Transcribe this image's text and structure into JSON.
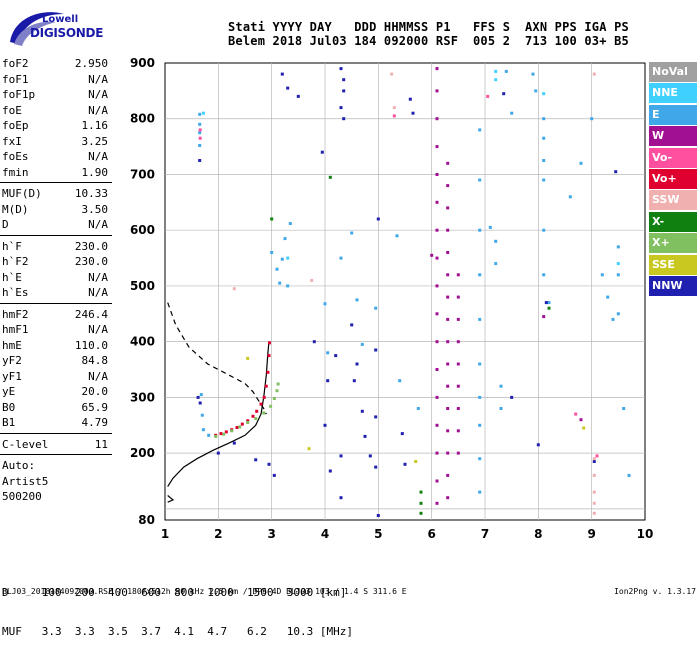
{
  "logo": {
    "line1": "Lowell",
    "line2": "DIGISONDE"
  },
  "header": {
    "labels": "Stati YYYY DAY   DDD HHMMSS P1   FFS S  AXN PPS IGA PS",
    "values": "Belem 2018 Jul03 184 092000 RSF  005 2  713 100 03+ B5"
  },
  "params": [
    {
      "label": "foF2",
      "value": "2.950"
    },
    {
      "label": "foF1",
      "value": "N/A"
    },
    {
      "label": "foF1p",
      "value": "N/A"
    },
    {
      "label": "foE",
      "value": "N/A"
    },
    {
      "label": "foEp",
      "value": "1.16"
    },
    {
      "label": "fxI",
      "value": "3.25"
    },
    {
      "label": "foEs",
      "value": "N/A"
    },
    {
      "label": "fmin",
      "value": "1.90"
    },
    {
      "label": "---"
    },
    {
      "label": "MUF(D)",
      "value": "10.33"
    },
    {
      "label": "M(D)",
      "value": "3.50"
    },
    {
      "label": "D",
      "value": "N/A"
    },
    {
      "label": "---"
    },
    {
      "label": "h`F",
      "value": "230.0"
    },
    {
      "label": "h`F2",
      "value": "230.0"
    },
    {
      "label": "h`E",
      "value": "N/A"
    },
    {
      "label": "h`Es",
      "value": "N/A"
    },
    {
      "label": "---"
    },
    {
      "label": "hmF2",
      "value": "246.4"
    },
    {
      "label": "hmF1",
      "value": "N/A"
    },
    {
      "label": "hmE",
      "value": "110.0"
    },
    {
      "label": "yF2",
      "value": "84.8"
    },
    {
      "label": "yF1",
      "value": "N/A"
    },
    {
      "label": "yE",
      "value": "20.0"
    },
    {
      "label": "B0",
      "value": "65.9"
    },
    {
      "label": "B1",
      "value": "4.79"
    },
    {
      "label": "---"
    },
    {
      "label": "C-level",
      "value": "11"
    },
    {
      "label": "---"
    },
    {
      "text": "Auto:"
    },
    {
      "text": "Artist5"
    },
    {
      "text": "500200"
    }
  ],
  "legend": [
    {
      "label": "NoVal",
      "color": "#a0a0a0"
    },
    {
      "label": "NNE",
      "color": "#40d0ff"
    },
    {
      "label": "E",
      "color": "#40a8e8"
    },
    {
      "label": "W",
      "color": "#a01090"
    },
    {
      "label": "Vo-",
      "color": "#ff50a0"
    },
    {
      "label": "Vo+",
      "color": "#e00030"
    },
    {
      "label": "SSW",
      "color": "#f0b0b0"
    },
    {
      "label": "X-",
      "color": "#108010"
    },
    {
      "label": "X+",
      "color": "#80c060"
    },
    {
      "label": "SSE",
      "color": "#c8c820"
    },
    {
      "label": "NNW",
      "color": "#2020b0"
    }
  ],
  "dtable": {
    "row1": "D     100  200  400  600  800  1000  1500  3000 [km]",
    "row2": "MUF   3.3  3.3  3.5  3.7  4.1  4.7   6.2   10.3 [MHz]"
  },
  "footer": {
    "text": "BLJ03_2018184092000.RSF / 180fx512h 50 kHz 2.5 km / DPS-4D BLJ03 103 / 1.4 S 311.6 E",
    "version": "Ion2Png v. 1.3.17"
  },
  "chart_data": {
    "type": "scatter",
    "title": "",
    "xlabel": "",
    "ylabel": "",
    "xlim": [
      1,
      10
    ],
    "ylim": [
      80,
      900
    ],
    "x_ticks": [
      1,
      2,
      3,
      4,
      5,
      6,
      7,
      8,
      9,
      10
    ],
    "y_ticks": [
      80,
      100,
      200,
      300,
      400,
      500,
      600,
      700,
      800,
      900
    ],
    "y_tick_labels": [
      "80",
      "",
      "200",
      "300",
      "400",
      "500",
      "600",
      "700",
      "800",
      "900"
    ],
    "grid": true,
    "legend_position": "right",
    "series": [
      {
        "color": "#e00030",
        "points": [
          [
            1.95,
            232
          ],
          [
            2.05,
            235
          ],
          [
            2.15,
            238
          ],
          [
            2.25,
            242
          ],
          [
            2.35,
            246
          ],
          [
            2.45,
            252
          ],
          [
            2.55,
            258
          ],
          [
            2.65,
            266
          ],
          [
            2.72,
            275
          ],
          [
            2.8,
            288
          ],
          [
            2.86,
            300
          ],
          [
            2.9,
            320
          ],
          [
            2.93,
            345
          ],
          [
            2.95,
            375
          ],
          [
            2.96,
            398
          ]
        ]
      },
      {
        "color": "#80c060",
        "points": [
          [
            1.95,
            230
          ],
          [
            2.1,
            234
          ],
          [
            2.25,
            240
          ],
          [
            2.4,
            247
          ],
          [
            2.55,
            255
          ],
          [
            2.7,
            262
          ],
          [
            2.85,
            272
          ],
          [
            2.98,
            284
          ],
          [
            3.05,
            298
          ],
          [
            3.1,
            312
          ],
          [
            3.12,
            324
          ]
        ]
      },
      {
        "color": "#40a8e8",
        "points": [
          [
            1.65,
            808
          ],
          [
            1.65,
            790
          ],
          [
            1.65,
            775
          ],
          [
            1.65,
            752
          ],
          [
            1.68,
            305
          ],
          [
            1.7,
            268
          ],
          [
            1.72,
            242
          ],
          [
            1.82,
            232
          ],
          [
            3.0,
            560
          ],
          [
            3.1,
            530
          ],
          [
            3.15,
            505
          ],
          [
            3.2,
            548
          ],
          [
            3.25,
            585
          ],
          [
            3.3,
            500
          ],
          [
            3.35,
            612
          ],
          [
            4.0,
            468
          ],
          [
            4.05,
            380
          ],
          [
            4.3,
            550
          ],
          [
            4.5,
            595
          ],
          [
            4.6,
            475
          ],
          [
            4.7,
            395
          ],
          [
            4.95,
            460
          ],
          [
            5.35,
            590
          ],
          [
            5.4,
            330
          ],
          [
            5.75,
            280
          ],
          [
            6.9,
            780
          ],
          [
            6.9,
            690
          ],
          [
            6.9,
            600
          ],
          [
            6.9,
            520
          ],
          [
            6.9,
            440
          ],
          [
            6.9,
            360
          ],
          [
            6.9,
            300
          ],
          [
            6.9,
            250
          ],
          [
            6.9,
            190
          ],
          [
            6.9,
            130
          ],
          [
            7.1,
            605
          ],
          [
            7.2,
            580
          ],
          [
            7.2,
            540
          ],
          [
            7.3,
            320
          ],
          [
            7.3,
            280
          ],
          [
            7.4,
            885
          ],
          [
            7.5,
            810
          ],
          [
            7.9,
            880
          ],
          [
            7.95,
            850
          ],
          [
            8.1,
            800
          ],
          [
            8.1,
            765
          ],
          [
            8.1,
            725
          ],
          [
            8.1,
            690
          ],
          [
            8.1,
            600
          ],
          [
            8.1,
            520
          ],
          [
            8.2,
            470
          ],
          [
            8.6,
            660
          ],
          [
            8.8,
            720
          ],
          [
            9.0,
            800
          ],
          [
            9.2,
            520
          ],
          [
            9.3,
            480
          ],
          [
            9.4,
            440
          ],
          [
            9.5,
            570
          ],
          [
            9.5,
            520
          ],
          [
            9.5,
            450
          ],
          [
            9.6,
            280
          ],
          [
            9.7,
            160
          ]
        ]
      },
      {
        "color": "#40d0ff",
        "points": [
          [
            1.72,
            810
          ],
          [
            3.3,
            550
          ],
          [
            7.2,
            870
          ],
          [
            7.2,
            885
          ],
          [
            8.1,
            845
          ],
          [
            9.5,
            540
          ]
        ]
      },
      {
        "color": "#2020b0",
        "points": [
          [
            1.62,
            300
          ],
          [
            1.65,
            725
          ],
          [
            1.66,
            290
          ],
          [
            2.0,
            200
          ],
          [
            2.3,
            218
          ],
          [
            2.7,
            188
          ],
          [
            2.95,
            180
          ],
          [
            3.05,
            160
          ],
          [
            3.2,
            880
          ],
          [
            3.3,
            855
          ],
          [
            3.5,
            840
          ],
          [
            3.8,
            400
          ],
          [
            3.95,
            740
          ],
          [
            4.0,
            250
          ],
          [
            4.05,
            330
          ],
          [
            4.1,
            168
          ],
          [
            4.2,
            375
          ],
          [
            4.3,
            890
          ],
          [
            4.35,
            870
          ],
          [
            4.35,
            850
          ],
          [
            4.3,
            820
          ],
          [
            4.35,
            800
          ],
          [
            4.3,
            195
          ],
          [
            4.3,
            120
          ],
          [
            4.5,
            430
          ],
          [
            4.55,
            330
          ],
          [
            4.6,
            360
          ],
          [
            4.7,
            275
          ],
          [
            4.75,
            230
          ],
          [
            4.85,
            195
          ],
          [
            4.95,
            385
          ],
          [
            4.95,
            265
          ],
          [
            4.95,
            175
          ],
          [
            5.0,
            620
          ],
          [
            5.0,
            88
          ],
          [
            5.45,
            235
          ],
          [
            5.5,
            180
          ],
          [
            5.6,
            835
          ],
          [
            5.65,
            810
          ],
          [
            7.35,
            845
          ],
          [
            7.5,
            300
          ],
          [
            8.0,
            215
          ],
          [
            8.15,
            470
          ],
          [
            9.05,
            185
          ],
          [
            9.45,
            705
          ]
        ]
      },
      {
        "color": "#a01090",
        "points": [
          [
            6.1,
            890
          ],
          [
            6.1,
            850
          ],
          [
            6.1,
            800
          ],
          [
            6.1,
            750
          ],
          [
            6.1,
            700
          ],
          [
            6.1,
            650
          ],
          [
            6.1,
            600
          ],
          [
            6.1,
            550
          ],
          [
            6.1,
            500
          ],
          [
            6.1,
            450
          ],
          [
            6.1,
            400
          ],
          [
            6.1,
            350
          ],
          [
            6.1,
            300
          ],
          [
            6.1,
            250
          ],
          [
            6.1,
            200
          ],
          [
            6.1,
            150
          ],
          [
            6.1,
            110
          ],
          [
            6.3,
            720
          ],
          [
            6.3,
            680
          ],
          [
            6.3,
            640
          ],
          [
            6.3,
            600
          ],
          [
            6.3,
            560
          ],
          [
            6.3,
            520
          ],
          [
            6.3,
            480
          ],
          [
            6.3,
            440
          ],
          [
            6.3,
            400
          ],
          [
            6.3,
            360
          ],
          [
            6.3,
            320
          ],
          [
            6.3,
            280
          ],
          [
            6.3,
            240
          ],
          [
            6.3,
            200
          ],
          [
            6.3,
            160
          ],
          [
            6.3,
            120
          ],
          [
            6.5,
            520
          ],
          [
            6.5,
            480
          ],
          [
            6.5,
            440
          ],
          [
            6.5,
            400
          ],
          [
            6.5,
            360
          ],
          [
            6.5,
            320
          ],
          [
            6.5,
            280
          ],
          [
            6.5,
            240
          ],
          [
            6.5,
            200
          ],
          [
            8.1,
            445
          ],
          [
            8.8,
            260
          ],
          [
            6.0,
            555
          ]
        ]
      },
      {
        "color": "#f0b0b0",
        "points": [
          [
            5.25,
            880
          ],
          [
            5.3,
            820
          ],
          [
            9.05,
            880
          ],
          [
            9.05,
            190
          ],
          [
            9.05,
            160
          ],
          [
            9.05,
            130
          ],
          [
            9.05,
            110
          ],
          [
            9.05,
            92
          ],
          [
            2.3,
            495
          ],
          [
            3.75,
            510
          ]
        ]
      },
      {
        "color": "#ff50a0",
        "points": [
          [
            1.66,
            780
          ],
          [
            1.66,
            765
          ],
          [
            5.3,
            805
          ],
          [
            7.05,
            840
          ],
          [
            8.7,
            270
          ],
          [
            9.1,
            195
          ]
        ]
      },
      {
        "color": "#108010",
        "points": [
          [
            5.8,
            130
          ],
          [
            5.8,
            110
          ],
          [
            5.8,
            92
          ],
          [
            3.0,
            620
          ],
          [
            4.1,
            695
          ],
          [
            8.2,
            460
          ]
        ]
      },
      {
        "color": "#c8c820",
        "points": [
          [
            2.55,
            370
          ],
          [
            3.7,
            208
          ],
          [
            5.7,
            185
          ],
          [
            8.85,
            245
          ]
        ]
      }
    ],
    "lines": [
      {
        "style": "solid",
        "points": [
          [
            1.05,
            140
          ],
          [
            1.15,
            155
          ],
          [
            1.35,
            175
          ],
          [
            1.6,
            190
          ],
          [
            1.9,
            205
          ],
          [
            2.2,
            218
          ],
          [
            2.5,
            232
          ],
          [
            2.7,
            250
          ],
          [
            2.8,
            270
          ],
          [
            2.85,
            300
          ],
          [
            2.9,
            340
          ],
          [
            2.93,
            380
          ],
          [
            2.95,
            400
          ]
        ]
      },
      {
        "style": "solid",
        "points": [
          [
            1.05,
            112
          ],
          [
            1.15,
            116
          ],
          [
            1.1,
            120
          ],
          [
            1.05,
            124
          ]
        ]
      },
      {
        "style": "dashed",
        "points": [
          [
            1.05,
            470
          ],
          [
            1.2,
            430
          ],
          [
            1.45,
            390
          ],
          [
            1.8,
            360
          ],
          [
            2.2,
            340
          ],
          [
            2.5,
            325
          ],
          [
            2.65,
            310
          ],
          [
            2.75,
            295
          ],
          [
            2.85,
            280
          ],
          [
            2.9,
            270
          ]
        ]
      }
    ]
  }
}
